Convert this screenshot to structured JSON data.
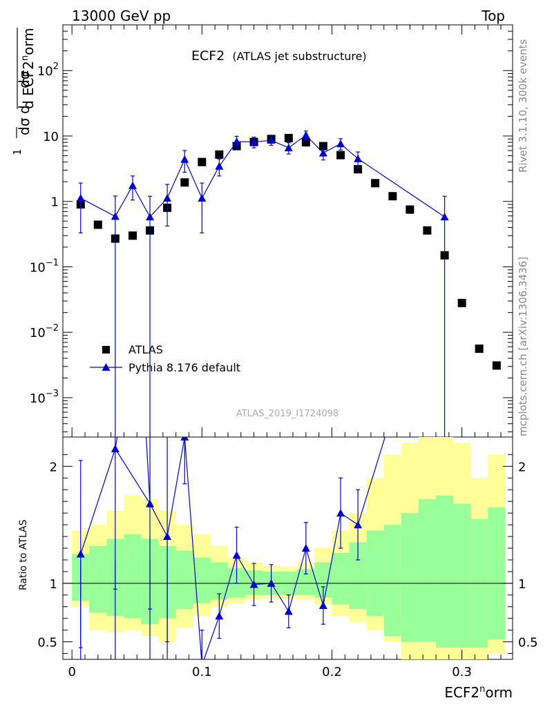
{
  "header": {
    "left": "13000 GeV pp",
    "right": "Top"
  },
  "side": {
    "rivet": "Rivet 3.1.10,  300k events",
    "mcplots": "mcplots.cern.ch [arXiv:1306.3436]"
  },
  "chart_data": [
    {
      "type": "scatter",
      "panel": "main",
      "title": "ECF2",
      "subtitle": "(ATLAS jet substructure)",
      "watermark": "ATLAS_2019_I1724098",
      "xlabel": "ECF2^norm",
      "ylabel": "1/σ dσ/d ECF2^norm",
      "yscale": "log",
      "xlim": [
        -0.007,
        0.339
      ],
      "ylim": [
        0.00025,
        500
      ],
      "yticks": [
        {
          "value": 0.001,
          "base": "10",
          "exp": "−3"
        },
        {
          "value": 0.01,
          "base": "10",
          "exp": "−2"
        },
        {
          "value": 0.1,
          "base": "10",
          "exp": "−1"
        },
        {
          "value": 1,
          "base": "1",
          "exp": ""
        },
        {
          "value": 10,
          "base": "10",
          "exp": ""
        },
        {
          "value": 100,
          "base": "10",
          "exp": "2"
        }
      ],
      "series": [
        {
          "name": "ATLAS",
          "marker": "square",
          "color": "#000000",
          "x": [
            0.0067,
            0.02,
            0.0333,
            0.0467,
            0.06,
            0.0733,
            0.0867,
            0.1,
            0.1133,
            0.1267,
            0.14,
            0.1533,
            0.1667,
            0.18,
            0.1933,
            0.2067,
            0.22,
            0.2333,
            0.2467,
            0.26,
            0.2733,
            0.2867,
            0.3,
            0.3133,
            0.3267
          ],
          "y": [
            0.9,
            0.44,
            0.27,
            0.3,
            0.36,
            0.8,
            1.95,
            4.0,
            5.2,
            7.0,
            8.1,
            9.0,
            9.3,
            8.0,
            7.0,
            5.1,
            3.1,
            1.9,
            1.2,
            0.75,
            0.36,
            0.15,
            0.028,
            0.0056,
            0.0031
          ]
        },
        {
          "name": "Pythia 8.176 default",
          "marker": "triangle",
          "color": "#0000cc",
          "x": [
            0.0067,
            0.0333,
            0.0467,
            0.06,
            0.0733,
            0.0867,
            0.1,
            0.1133,
            0.1267,
            0.14,
            0.1533,
            0.1667,
            0.18,
            0.1933,
            0.2067,
            0.22,
            0.2867
          ],
          "y": [
            1.12,
            0.59,
            1.75,
            0.58,
            1.12,
            4.4,
            1.12,
            3.45,
            8.2,
            8.1,
            8.6,
            6.6,
            10.3,
            5.5,
            7.6,
            4.5,
            0.58
          ],
          "yerr_low": [
            0.79,
            0.59,
            0.7,
            0.58,
            0.7,
            1.6,
            0.79,
            1.0,
            1.7,
            1.5,
            1.4,
            1.3,
            1.6,
            1.2,
            1.5,
            1.2,
            0.58
          ],
          "yerr_high": [
            0.79,
            0.62,
            0.7,
            0.62,
            0.7,
            1.6,
            0.79,
            1.0,
            1.7,
            1.5,
            1.4,
            1.3,
            1.6,
            1.2,
            1.5,
            1.2,
            0.62
          ]
        }
      ]
    },
    {
      "type": "line",
      "panel": "ratio",
      "ylabel": "Ratio to ATLAS",
      "xlim": [
        -0.007,
        0.339
      ],
      "ylim": [
        0.35,
        2.25
      ],
      "yticks": [
        0.5,
        1,
        2
      ],
      "xticks": [
        "0",
        "0.1",
        "0.2",
        "0.3"
      ],
      "bands": {
        "bin_edges": [
          0.0,
          0.0133,
          0.0267,
          0.04,
          0.0533,
          0.0667,
          0.08,
          0.0933,
          0.1067,
          0.12,
          0.1333,
          0.1467,
          0.16,
          0.1733,
          0.1867,
          0.2,
          0.2133,
          0.2267,
          0.24,
          0.2533,
          0.2667,
          0.28,
          0.2933,
          0.3067,
          0.32,
          0.3333
        ],
        "yellow_low": [
          0.8,
          0.6,
          0.58,
          0.6,
          0.55,
          0.5,
          0.62,
          0.72,
          0.8,
          0.83,
          0.86,
          0.87,
          0.87,
          0.86,
          0.82,
          0.72,
          0.67,
          0.6,
          0.5,
          0.35,
          0.35,
          0.35,
          0.35,
          0.35,
          0.4
        ],
        "yellow_high": [
          1.45,
          1.5,
          1.62,
          1.75,
          1.72,
          1.62,
          1.5,
          1.42,
          1.32,
          1.22,
          1.18,
          1.15,
          1.14,
          1.18,
          1.3,
          1.45,
          1.6,
          1.9,
          2.1,
          2.2,
          2.25,
          2.25,
          2.2,
          1.9,
          2.1
        ],
        "green_low": [
          0.85,
          0.75,
          0.72,
          0.7,
          0.65,
          0.7,
          0.78,
          0.83,
          0.86,
          0.88,
          0.9,
          0.9,
          0.9,
          0.9,
          0.88,
          0.82,
          0.78,
          0.72,
          0.55,
          0.5,
          0.5,
          0.45,
          0.45,
          0.45,
          0.52
        ],
        "green_high": [
          1.25,
          1.32,
          1.38,
          1.42,
          1.38,
          1.32,
          1.28,
          1.22,
          1.18,
          1.13,
          1.11,
          1.1,
          1.1,
          1.12,
          1.18,
          1.26,
          1.35,
          1.45,
          1.5,
          1.6,
          1.72,
          1.75,
          1.68,
          1.55,
          1.65
        ]
      },
      "series": [
        {
          "name": "Pythia 8.176 default / ATLAS",
          "color": "#0000cc",
          "x": [
            0.0067,
            0.0333,
            0.06,
            0.0733,
            0.0867,
            0.1,
            0.1133,
            0.1267,
            0.14,
            0.1533,
            0.1667,
            0.18,
            0.1933,
            0.2067,
            0.22
          ],
          "y": [
            1.25,
            2.15,
            1.68,
            1.4,
            2.25,
            0.3,
            0.72,
            1.24,
            0.99,
            1.0,
            0.76,
            1.3,
            0.81,
            1.6,
            1.5
          ],
          "yerr": [
            0.8,
            1.2,
            0.9,
            0.9,
            0.4,
            0.3,
            0.19,
            0.24,
            0.18,
            0.16,
            0.14,
            0.22,
            0.16,
            0.3,
            0.3
          ]
        }
      ],
      "extra_segments": [
        {
          "x": [
            0.0333,
            0.0467
          ],
          "y": [
            2.15,
            3.0
          ]
        },
        {
          "x": [
            0.0533,
            0.06
          ],
          "y": [
            3.0,
            1.68
          ]
        },
        {
          "x": [
            0.22,
            0.2867
          ],
          "y": [
            1.5,
            3.9
          ]
        }
      ]
    }
  ]
}
